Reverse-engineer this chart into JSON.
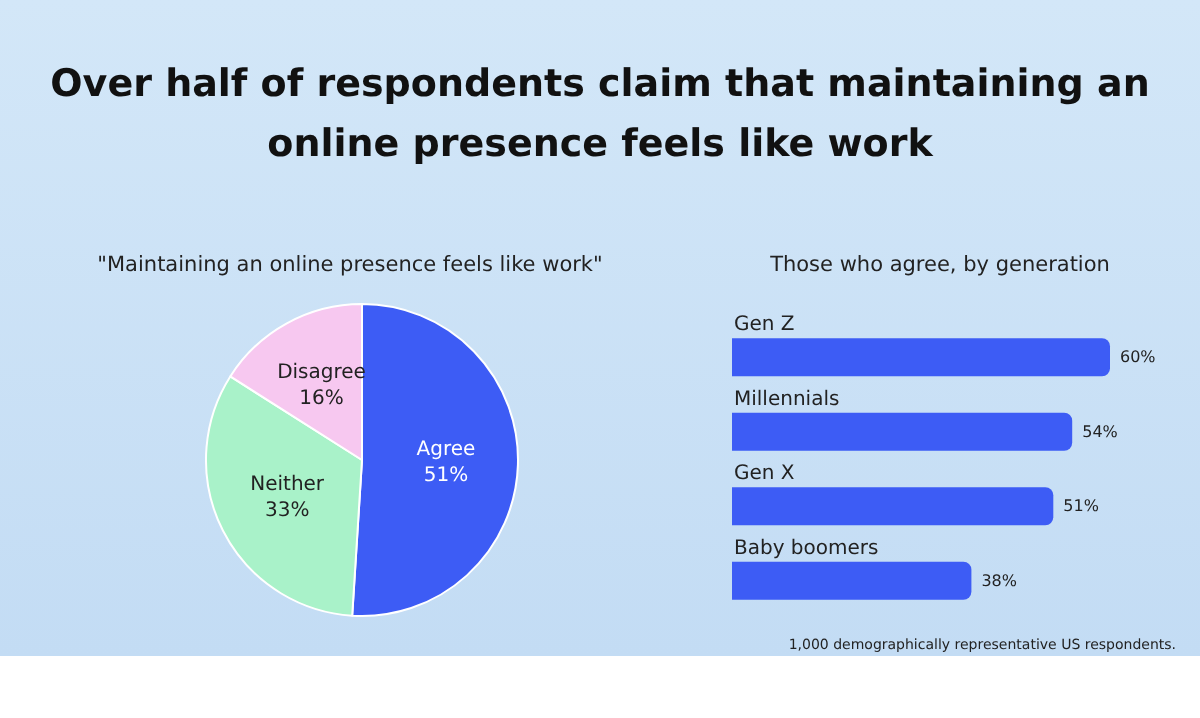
{
  "chart_data": [
    {
      "type": "pie",
      "title": "Over half of respondents claim that maintaining an online presence feels like work",
      "subtitle": "\"Maintaining an online presence feels like work\"",
      "categories": [
        "Agree",
        "Neither",
        "Disagree"
      ],
      "values": [
        51,
        33,
        16
      ],
      "colors": [
        "#3d5cf5",
        "#a9f2c9",
        "#f7c8f0"
      ],
      "value_labels": [
        "51%",
        "33%",
        "16%"
      ],
      "legend": false
    },
    {
      "type": "bar",
      "orientation": "horizontal",
      "title": "Those who agree, by generation",
      "categories": [
        "Gen Z",
        "Millennials",
        "Gen X",
        "Baby boomers"
      ],
      "values": [
        60,
        54,
        51,
        38
      ],
      "color": "#3d5cf5",
      "value_labels": [
        "60%",
        "54%",
        "51%",
        "38%"
      ],
      "annotations": [
        "1,000 demographically representative US respondents."
      ],
      "legend": false
    }
  ]
}
